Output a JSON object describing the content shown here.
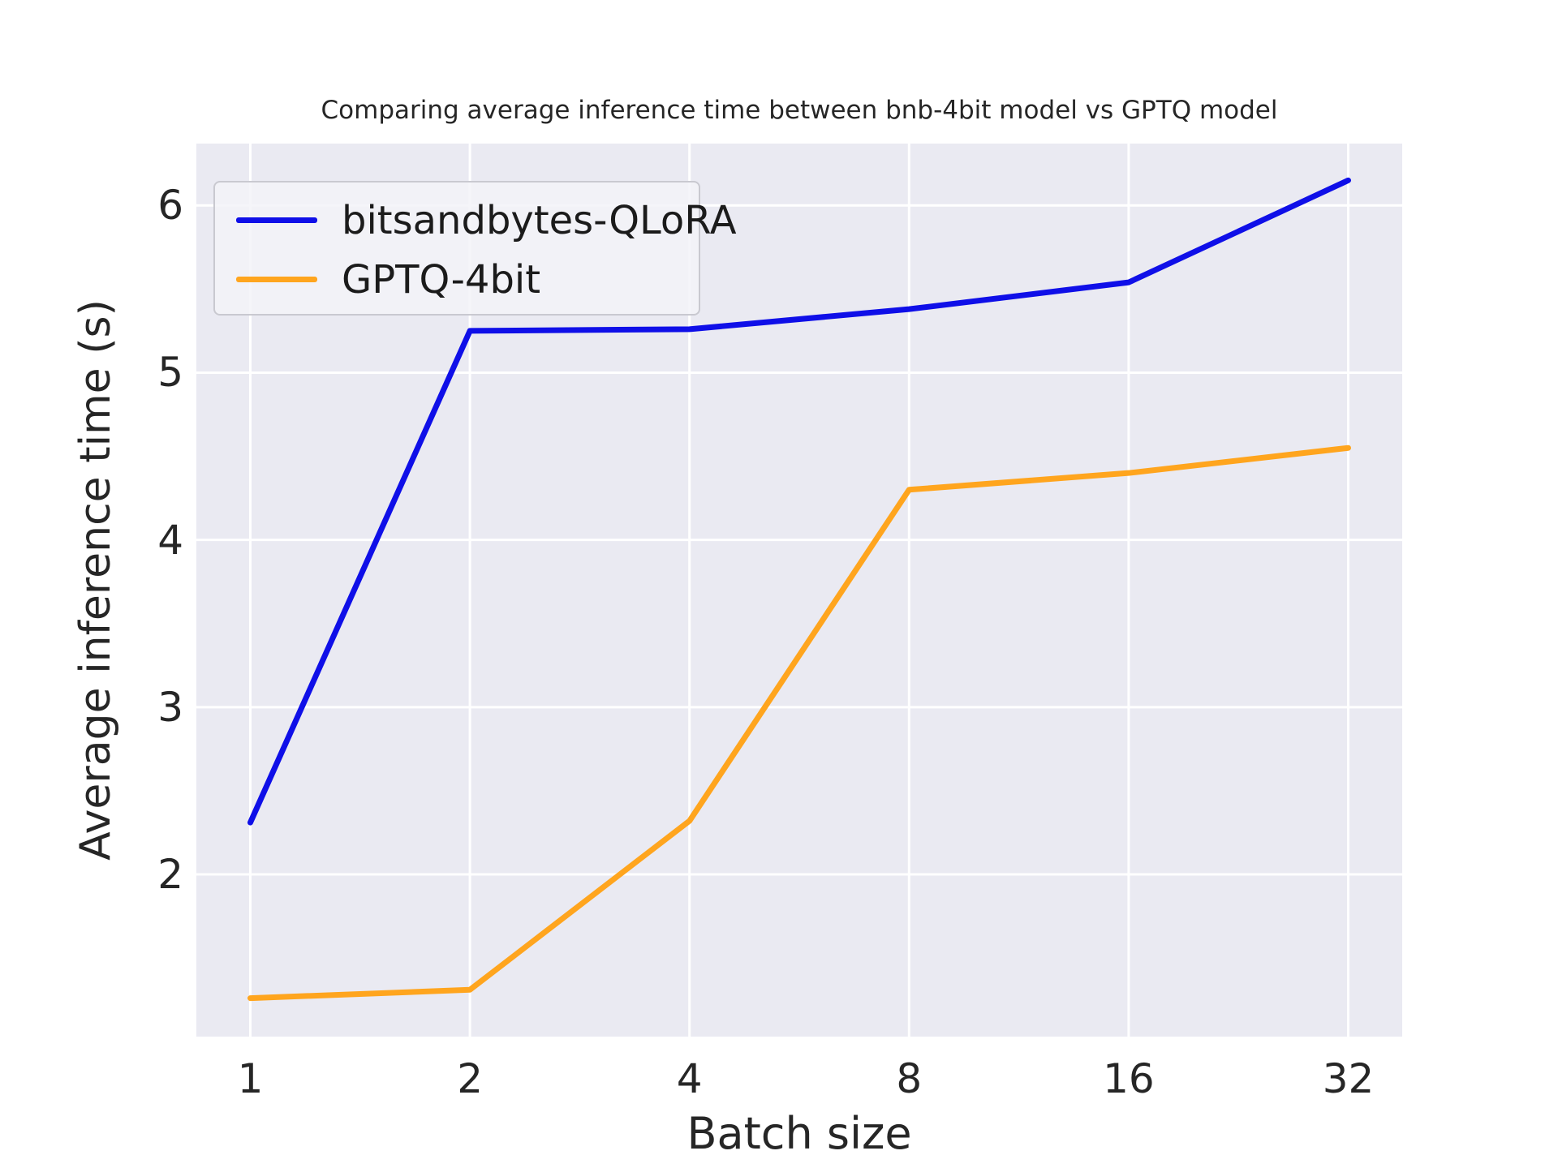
{
  "title": "Comparing average inference time between bnb-4bit model vs GPTQ model",
  "axes": {
    "xlabel": "Batch size",
    "ylabel": "Average inference time (s)"
  },
  "legend": {
    "position": "upper left",
    "entries": [
      {
        "label": "bitsandbytes-QLoRA",
        "color": "#0f0fe8"
      },
      {
        "label": "GPTQ-4bit",
        "color": "#ffa51e"
      }
    ]
  },
  "colors": {
    "figure_background": "#ffffff",
    "plot_background": "#eaeaf2",
    "gridline": "#ffffff",
    "text": "#262626",
    "series_blue": "#0f0fe8",
    "series_orange": "#ffa51e",
    "legend_border": "#c9c9d0"
  },
  "chart_data": {
    "type": "line",
    "title": "Comparing average inference time between bnb-4bit model vs GPTQ model",
    "xlabel": "Batch size",
    "ylabel": "Average inference time (s)",
    "categories": [
      "1",
      "2",
      "4",
      "8",
      "16",
      "32"
    ],
    "x_values": [
      1,
      2,
      4,
      8,
      16,
      32
    ],
    "x_spacing": "equal",
    "series": [
      {
        "name": "bitsandbytes-QLoRA",
        "color": "#0f0fe8",
        "values": [
          2.31,
          5.25,
          5.26,
          5.38,
          5.54,
          6.15
        ]
      },
      {
        "name": "GPTQ-4bit",
        "color": "#ffa51e",
        "values": [
          1.26,
          1.31,
          2.32,
          4.3,
          4.4,
          4.55
        ]
      }
    ],
    "yticks": [
      2,
      3,
      4,
      5,
      6
    ],
    "ylim": [
      1.03,
      6.37
    ],
    "grid": true,
    "legend_position": "upper left"
  }
}
